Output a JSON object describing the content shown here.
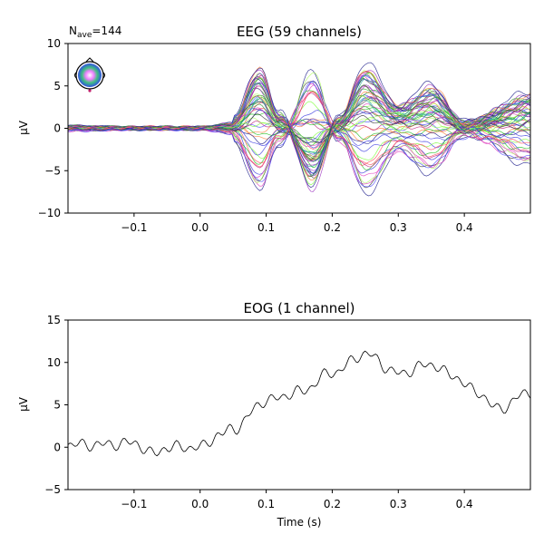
{
  "chart_data": [
    {
      "type": "line",
      "title": "EEG (59 channels)",
      "nave_prefix": "N",
      "nave_sub": "ave",
      "nave_value": "=144",
      "ylabel": "µV",
      "xlabel": "",
      "xlim": [
        -0.2,
        0.5
      ],
      "ylim": [
        -10,
        10
      ],
      "xticks": [
        -0.1,
        0.0,
        0.1,
        0.2,
        0.3,
        0.4
      ],
      "xtick_labels": [
        "−0.1",
        "0.0",
        "0.1",
        "0.2",
        "0.3",
        "0.4"
      ],
      "yticks": [
        -10,
        -5,
        0,
        5,
        10
      ],
      "ytick_labels": [
        "−10",
        "−5",
        "0",
        "5",
        "10"
      ],
      "grid": false,
      "channel_count": 59,
      "series_colors": [
        "#1f1f8c",
        "#3a3adf",
        "#2a8f2a",
        "#20c020",
        "#7dff3a",
        "#b0ff60",
        "#c02080",
        "#e040c0",
        "#9b30c0",
        "#ff7f3a",
        "#30b0a0",
        "#5050ff",
        "#404040",
        "#ff5060"
      ],
      "key_points": [
        {
          "x": -0.2,
          "y": 0.3
        },
        {
          "x": -0.1,
          "y": 0.0
        },
        {
          "x": 0.0,
          "y": 0.0
        },
        {
          "x": 0.05,
          "y": 1.0
        },
        {
          "x": 0.09,
          "y": 7.0
        },
        {
          "x": 0.12,
          "y": 1.5
        },
        {
          "x": 0.17,
          "y": -6.5
        },
        {
          "x": 0.21,
          "y": 1.0
        },
        {
          "x": 0.25,
          "y": 7.2
        },
        {
          "x": 0.3,
          "y": 2.5
        },
        {
          "x": 0.35,
          "y": 4.8
        },
        {
          "x": 0.4,
          "y": 0.5
        },
        {
          "x": 0.5,
          "y": 3.8
        }
      ]
    },
    {
      "type": "line",
      "title": "EOG (1 channel)",
      "ylabel": "µV",
      "xlabel": "Time (s)",
      "xlim": [
        -0.2,
        0.5
      ],
      "ylim": [
        -5,
        15
      ],
      "xticks": [
        -0.1,
        0.0,
        0.1,
        0.2,
        0.3,
        0.4
      ],
      "xtick_labels": [
        "−0.1",
        "0.0",
        "0.1",
        "0.2",
        "0.3",
        "0.4"
      ],
      "yticks": [
        -5,
        0,
        5,
        10,
        15
      ],
      "ytick_labels": [
        "−5",
        "0",
        "5",
        "10",
        "15"
      ],
      "grid": false,
      "line_color": "#000000",
      "series": [
        {
          "x": [
            -0.2,
            -0.15,
            -0.1,
            -0.07,
            -0.05,
            0.0,
            0.03,
            0.05,
            0.1,
            0.15,
            0.2,
            0.25,
            0.3,
            0.35,
            0.38,
            0.42,
            0.45,
            0.5
          ],
          "values": [
            0.3,
            0.3,
            0.5,
            -0.8,
            0.0,
            0.0,
            1.5,
            2.2,
            5.5,
            6.5,
            8.8,
            11.0,
            8.7,
            9.8,
            8.5,
            6.5,
            4.5,
            6.5
          ]
        }
      ]
    }
  ]
}
